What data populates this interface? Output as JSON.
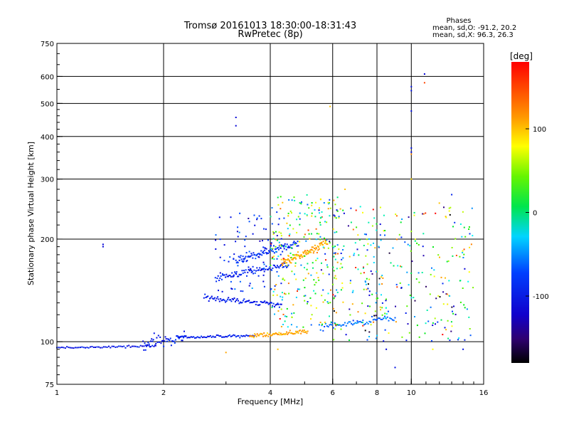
{
  "chart_data": {
    "type": "scatter",
    "title": "Tromsø 20161013 18:30:00-18:31:43",
    "subtitle": "RwPretec (8p)",
    "xlabel": "Frequency [MHz]",
    "ylabel": "Stationary phase Virtual Height [km]",
    "x_scale": "log",
    "y_scale": "log",
    "xlim": [
      1,
      16
    ],
    "ylim": [
      75,
      750
    ],
    "x_ticks": [
      {
        "v": 1,
        "label": "1"
      },
      {
        "v": 2,
        "label": "2"
      },
      {
        "v": 4,
        "label": "4"
      },
      {
        "v": 6,
        "label": "6"
      },
      {
        "v": 8,
        "label": "8"
      },
      {
        "v": 10,
        "label": "10"
      },
      {
        "v": 16,
        "label": "16"
      }
    ],
    "y_ticks": [
      {
        "v": 75,
        "label": "75"
      },
      {
        "v": 100,
        "label": "100"
      },
      {
        "v": 200,
        "label": "200"
      },
      {
        "v": 300,
        "label": "300"
      },
      {
        "v": 400,
        "label": "400"
      },
      {
        "v": 500,
        "label": "500"
      },
      {
        "v": 600,
        "label": "600"
      },
      {
        "v": 750,
        "label": "750"
      }
    ],
    "grid": true,
    "grid_x": [
      2,
      4,
      6,
      8,
      10
    ],
    "grid_y": [
      100,
      200,
      300,
      400,
      500,
      600
    ],
    "stats": {
      "header": "Phases",
      "line1": "mean, sd,O: -91.2, 20.2",
      "line2": "mean, sd,X:  96.3, 26.3"
    },
    "colorbar": {
      "label": "[deg]",
      "min": -180,
      "max": 180,
      "ticks": [
        {
          "v": 100,
          "label": "100"
        },
        {
          "v": 0,
          "label": "0"
        },
        {
          "v": -100,
          "label": "-100"
        }
      ]
    },
    "traces": [
      {
        "x0": 1.0,
        "x1": 1.9,
        "y0": 96,
        "y1": 97,
        "phase": -100,
        "n": 60,
        "jitter": 0.006
      },
      {
        "x0": 1.75,
        "x1": 2.3,
        "y0": 99,
        "y1": 103,
        "phase": -95,
        "n": 50,
        "jitter": 0.03
      },
      {
        "x0": 2.2,
        "x1": 3.6,
        "y0": 103,
        "y1": 104,
        "phase": -90,
        "n": 60,
        "jitter": 0.006
      },
      {
        "x0": 3.5,
        "x1": 5.1,
        "y0": 104,
        "y1": 107,
        "phase": 110,
        "n": 70,
        "jitter": 0.01
      },
      {
        "x0": 2.6,
        "x1": 4.3,
        "y0": 135,
        "y1": 128,
        "phase": -95,
        "n": 80,
        "jitter": 0.012
      },
      {
        "x0": 2.8,
        "x1": 4.5,
        "y0": 154,
        "y1": 168,
        "phase": -90,
        "n": 80,
        "jitter": 0.015
      },
      {
        "x0": 3.2,
        "x1": 4.8,
        "y0": 172,
        "y1": 195,
        "phase": -85,
        "n": 90,
        "jitter": 0.02
      },
      {
        "x0": 4.3,
        "x1": 5.8,
        "y0": 170,
        "y1": 195,
        "phase": 110,
        "n": 90,
        "jitter": 0.02
      },
      {
        "x0": 5.5,
        "x1": 9.0,
        "y0": 110,
        "y1": 118,
        "phase": -60,
        "n": 60,
        "jitter": 0.015
      }
    ],
    "clouds": [
      {
        "x0": 2.8,
        "x1": 4.4,
        "y0": 140,
        "y1": 240,
        "n": 90,
        "phase": -90,
        "phase_sd": 25
      },
      {
        "x0": 4.0,
        "x1": 6.2,
        "y0": 110,
        "y1": 270,
        "n": 260,
        "phase": 40,
        "phase_sd": 110
      },
      {
        "x0": 6.0,
        "x1": 15.0,
        "y0": 100,
        "y1": 250,
        "n": 320,
        "phase": 0,
        "phase_sd": 120
      }
    ],
    "points": [
      {
        "x": 1.35,
        "y": 190,
        "phase": -110
      },
      {
        "x": 1.35,
        "y": 193,
        "phase": -110
      },
      {
        "x": 3.2,
        "y": 455,
        "phase": -110
      },
      {
        "x": 3.2,
        "y": 430,
        "phase": -110
      },
      {
        "x": 10.0,
        "y": 560,
        "phase": -100
      },
      {
        "x": 10.0,
        "y": 545,
        "phase": -100
      },
      {
        "x": 10.0,
        "y": 475,
        "phase": -100
      },
      {
        "x": 10.0,
        "y": 370,
        "phase": -100
      },
      {
        "x": 10.0,
        "y": 360,
        "phase": -100
      },
      {
        "x": 10.0,
        "y": 355,
        "phase": 120
      },
      {
        "x": 10.0,
        "y": 300,
        "phase": 90
      },
      {
        "x": 10.9,
        "y": 610,
        "phase": -110
      },
      {
        "x": 10.9,
        "y": 575,
        "phase": 150
      },
      {
        "x": 6.5,
        "y": 280,
        "phase": 100
      },
      {
        "x": 5.9,
        "y": 490,
        "phase": 100
      },
      {
        "x": 8.5,
        "y": 95,
        "phase": -110
      },
      {
        "x": 11.5,
        "y": 95,
        "phase": 80
      },
      {
        "x": 14.0,
        "y": 95,
        "phase": -100
      },
      {
        "x": 4.2,
        "y": 95,
        "phase": 100
      },
      {
        "x": 3.0,
        "y": 93,
        "phase": 110
      },
      {
        "x": 9.0,
        "y": 84,
        "phase": -100
      },
      {
        "x": 12.0,
        "y": 255,
        "phase": 100
      },
      {
        "x": 13.0,
        "y": 270,
        "phase": -90
      },
      {
        "x": 12.5,
        "y": 233,
        "phase": 100
      }
    ]
  }
}
